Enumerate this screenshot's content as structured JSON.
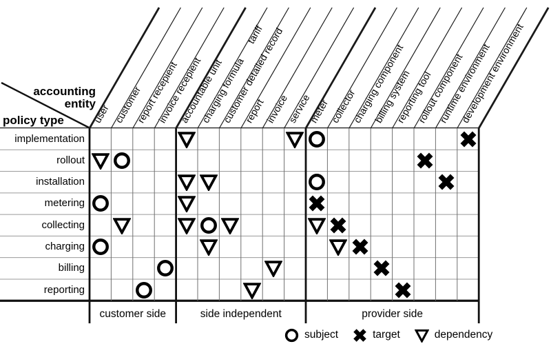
{
  "diagram": {
    "corner": {
      "entity_axis_label_line1": "accounting",
      "entity_axis_label_line2": "entity",
      "policy_axis_label": "policy type"
    },
    "columns": [
      {
        "label": "user",
        "group": 0
      },
      {
        "label": "customer",
        "group": 0
      },
      {
        "label": "report recepient",
        "group": 0
      },
      {
        "label": "invoice recepient",
        "group": 0
      },
      {
        "label": "accountable unit",
        "group": 1
      },
      {
        "label": "charging formula",
        "label2": "tariff",
        "group": 1
      },
      {
        "label": "customer detailed record",
        "group": 1
      },
      {
        "label": "report",
        "group": 1
      },
      {
        "label": "invoice",
        "group": 1
      },
      {
        "label": "service",
        "group": 1
      },
      {
        "label": "meter",
        "group": 2
      },
      {
        "label": "collector",
        "group": 2
      },
      {
        "label": "charging component",
        "group": 2
      },
      {
        "label": "billing system",
        "group": 2
      },
      {
        "label": "reporting tool",
        "group": 2
      },
      {
        "label": "rollout component",
        "group": 2
      },
      {
        "label": "runtime environment",
        "group": 2
      },
      {
        "label": "development environment",
        "group": 2
      }
    ],
    "rows": [
      "implementation",
      "rollout",
      "installation",
      "metering",
      "collecting",
      "charging",
      "billing",
      "reporting"
    ],
    "groups": [
      {
        "label": "customer side",
        "col_start": 0,
        "col_end": 3
      },
      {
        "label": "side independent",
        "col_start": 4,
        "col_end": 9
      },
      {
        "label": "provider side",
        "col_start": 10,
        "col_end": 17
      }
    ],
    "marks": [
      {
        "row": 0,
        "col": 4,
        "type": "dependency"
      },
      {
        "row": 0,
        "col": 9,
        "type": "dependency"
      },
      {
        "row": 0,
        "col": 10,
        "type": "subject"
      },
      {
        "row": 0,
        "col": 17,
        "type": "target"
      },
      {
        "row": 1,
        "col": 0,
        "type": "dependency"
      },
      {
        "row": 1,
        "col": 1,
        "type": "subject"
      },
      {
        "row": 1,
        "col": 15,
        "type": "target"
      },
      {
        "row": 2,
        "col": 4,
        "type": "dependency"
      },
      {
        "row": 2,
        "col": 5,
        "type": "dependency"
      },
      {
        "row": 2,
        "col": 10,
        "type": "subject"
      },
      {
        "row": 2,
        "col": 16,
        "type": "target"
      },
      {
        "row": 3,
        "col": 0,
        "type": "subject"
      },
      {
        "row": 3,
        "col": 4,
        "type": "dependency"
      },
      {
        "row": 3,
        "col": 10,
        "type": "target"
      },
      {
        "row": 4,
        "col": 1,
        "type": "dependency"
      },
      {
        "row": 4,
        "col": 4,
        "type": "dependency"
      },
      {
        "row": 4,
        "col": 5,
        "type": "subject"
      },
      {
        "row": 4,
        "col": 6,
        "type": "dependency"
      },
      {
        "row": 4,
        "col": 10,
        "type": "dependency"
      },
      {
        "row": 4,
        "col": 11,
        "type": "target"
      },
      {
        "row": 5,
        "col": 0,
        "type": "subject"
      },
      {
        "row": 5,
        "col": 5,
        "type": "dependency"
      },
      {
        "row": 5,
        "col": 11,
        "type": "dependency"
      },
      {
        "row": 5,
        "col": 12,
        "type": "target"
      },
      {
        "row": 6,
        "col": 3,
        "type": "subject"
      },
      {
        "row": 6,
        "col": 8,
        "type": "dependency"
      },
      {
        "row": 6,
        "col": 13,
        "type": "target"
      },
      {
        "row": 7,
        "col": 2,
        "type": "subject"
      },
      {
        "row": 7,
        "col": 7,
        "type": "dependency"
      },
      {
        "row": 7,
        "col": 14,
        "type": "target"
      }
    ],
    "legend": [
      {
        "symbol": "circle",
        "label": "subject"
      },
      {
        "symbol": "cross",
        "label": "target"
      },
      {
        "symbol": "triangle-down",
        "label": "dependency"
      }
    ],
    "colors": {
      "ink": "#111111",
      "diagonal": "#1a1a1a",
      "grid_vertical": "#6f6f6f",
      "grid_horizontal": "#9a9a9a",
      "background": "#ffffff"
    }
  }
}
